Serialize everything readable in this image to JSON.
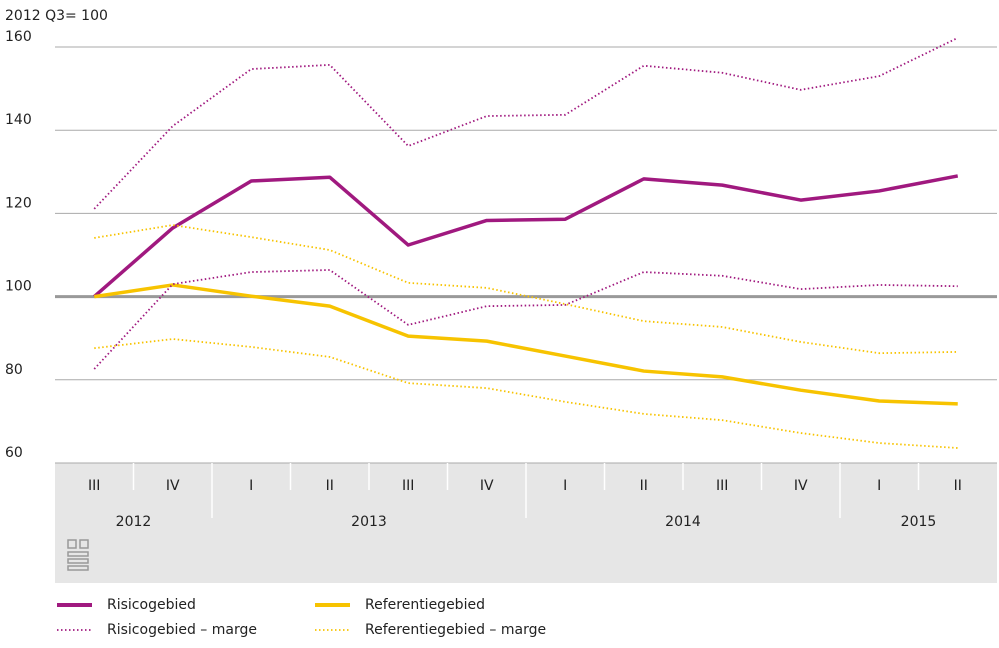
{
  "chart_data": {
    "type": "line",
    "y_axis_title": "2012 Q3= 100",
    "categories": [
      "III",
      "IV",
      "I",
      "II",
      "III",
      "IV",
      "I",
      "II",
      "III",
      "IV",
      "I",
      "II"
    ],
    "years": [
      "2012",
      null,
      "2013",
      null,
      null,
      null,
      "2014",
      null,
      null,
      null,
      "2015",
      null
    ],
    "ylim": [
      60,
      160
    ],
    "yticks": [
      60,
      80,
      100,
      120,
      140,
      160
    ],
    "grid": true,
    "reference_line": 100,
    "series": [
      {
        "name": "Risicogebied",
        "color": "#a0197f",
        "style": "solid",
        "values": [
          100,
          116.5,
          127.8,
          128.7,
          112.4,
          118.3,
          118.6,
          128.3,
          126.8,
          123.2,
          125.4,
          129
        ]
      },
      {
        "name": "Referentiegebied",
        "color": "#f7c300",
        "style": "solid",
        "values": [
          100,
          102.8,
          100.1,
          97.7,
          90.5,
          89.3,
          85.7,
          82.1,
          80.7,
          77.5,
          74.9,
          74.2
        ]
      },
      {
        "name": "Risicogebied – marge",
        "color": "#a0197f",
        "style": "dotted",
        "values": [
          121.1,
          141,
          154.7,
          155.7,
          136.2,
          143.4,
          143.7,
          155.5,
          153.8,
          149.7,
          153,
          162.2
        ]
      },
      {
        "name": "Risicogebied – marge",
        "color": "#a0197f",
        "style": "dotted",
        "legend": false,
        "values": [
          82.6,
          103,
          105.9,
          106.4,
          93.2,
          97.7,
          98,
          105.9,
          105,
          101.8,
          102.8,
          102.5
        ]
      },
      {
        "name": "Referentiegebied – marge",
        "color": "#f7c300",
        "style": "dotted",
        "values": [
          114.1,
          117.2,
          114.3,
          111.2,
          103.3,
          102.1,
          98.2,
          94.1,
          92.7,
          89.1,
          86.4,
          86.7
        ]
      },
      {
        "name": "Referentiegebied – marge",
        "color": "#f7c300",
        "style": "dotted",
        "legend": false,
        "values": [
          87.6,
          89.8,
          87.9,
          85.5,
          79.2,
          78,
          74.7,
          71.8,
          70.3,
          67.2,
          64.8,
          63.6
        ]
      }
    ]
  }
}
